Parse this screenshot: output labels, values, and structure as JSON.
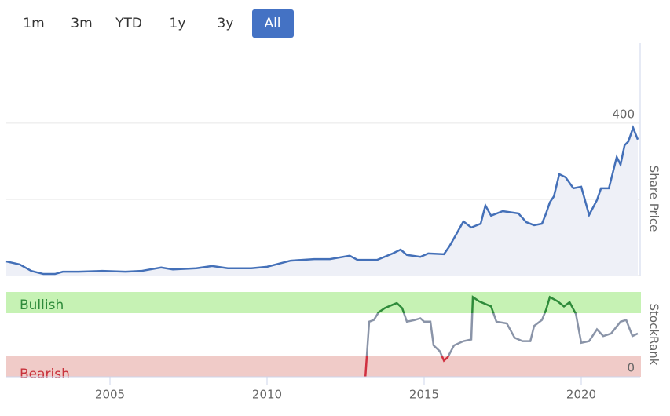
{
  "range_buttons": {
    "labels": [
      "1m",
      "3m",
      "YTD",
      "1y",
      "3y",
      "All"
    ],
    "selected": 5
  },
  "chart_data": [
    {
      "type": "area",
      "y_title": "Share Price",
      "x": [
        2001.7,
        2002.13,
        2002.5,
        2002.88,
        2003.25,
        2003.5,
        2004.0,
        2004.75,
        2005.5,
        2006.0,
        2006.63,
        2007.0,
        2007.75,
        2008.25,
        2008.75,
        2009.5,
        2010.0,
        2010.75,
        2011.5,
        2012.0,
        2012.63,
        2012.88,
        2013.5,
        2014.0,
        2014.25,
        2014.45,
        2014.88,
        2015.13,
        2015.63,
        2015.8,
        2016.0,
        2016.25,
        2016.5,
        2016.8,
        2016.95,
        2017.13,
        2017.5,
        2018.0,
        2018.25,
        2018.5,
        2018.75,
        2018.88,
        2019.0,
        2019.13,
        2019.3,
        2019.5,
        2019.75,
        2020.0,
        2020.25,
        2020.5,
        2020.63,
        2020.88,
        2021.13,
        2021.25,
        2021.38,
        2021.5,
        2021.65,
        2021.8
      ],
      "values": [
        37,
        29,
        12,
        4,
        4,
        10,
        10,
        12,
        10,
        12,
        21,
        16,
        19,
        25,
        19,
        19,
        23,
        39,
        43,
        43,
        52,
        41,
        41,
        58,
        68,
        54,
        49,
        58,
        56,
        76,
        105,
        142,
        126,
        136,
        184,
        157,
        169,
        163,
        140,
        132,
        136,
        163,
        192,
        208,
        266,
        258,
        229,
        233,
        159,
        198,
        229,
        229,
        311,
        291,
        342,
        352,
        388,
        357
      ],
      "color": "#4470b8",
      "xlim": [
        2001.7,
        2021.8
      ],
      "ylim": [
        0,
        610
      ],
      "yticks": [
        0,
        200,
        400
      ],
      "grid": true
    },
    {
      "type": "line",
      "y_title": "StockRank",
      "x": [
        2013.13,
        2013.25,
        2013.4,
        2013.55,
        2013.75,
        2014.0,
        2014.13,
        2014.3,
        2014.45,
        2014.7,
        2014.88,
        2015.0,
        2015.2,
        2015.3,
        2015.5,
        2015.63,
        2015.75,
        2015.95,
        2016.25,
        2016.5,
        2016.55,
        2016.75,
        2017.13,
        2017.3,
        2017.63,
        2017.88,
        2018.13,
        2018.38,
        2018.5,
        2018.75,
        2018.88,
        2019.0,
        2019.25,
        2019.45,
        2019.63,
        2019.83,
        2020.0,
        2020.25,
        2020.5,
        2020.7,
        2020.95,
        2021.25,
        2021.43,
        2021.63,
        2021.8
      ],
      "values": [
        0,
        65,
        67,
        76,
        81,
        85,
        87,
        81,
        65,
        67,
        69,
        65,
        65,
        37,
        30,
        19,
        23,
        37,
        42,
        44,
        94,
        89,
        83,
        65,
        63,
        46,
        42,
        42,
        60,
        67,
        79,
        94,
        89,
        83,
        88,
        74,
        40,
        42,
        56,
        48,
        51,
        65,
        67,
        48,
        51
      ],
      "color": "#8a94a8",
      "bands": [
        {
          "label": "Bullish",
          "from": 75,
          "to": 100,
          "color": "#c6f2b4",
          "line_color": "#2e8b3a",
          "text_color": "#2e8b3a"
        },
        {
          "label": "Bearish",
          "from": 0,
          "to": 25,
          "color": "#f0cbc8",
          "line_color": "#d03040",
          "text_color": "#c8323c"
        }
      ],
      "xlim": [
        2001.7,
        2021.8
      ],
      "ylim": [
        0,
        100
      ],
      "yticks": [
        0
      ],
      "xticks": [
        2005,
        2010,
        2015,
        2020
      ]
    }
  ]
}
